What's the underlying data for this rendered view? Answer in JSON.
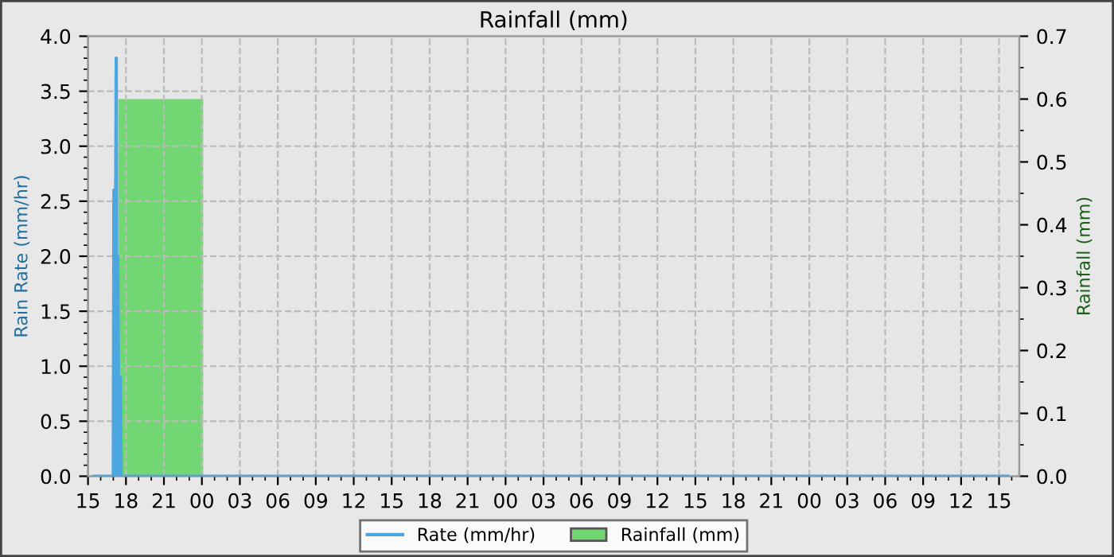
{
  "chart_data": {
    "type": "line",
    "title": "Rainfall (mm)",
    "ylabel": "Rain Rate (mm/hr)",
    "y2label": "Rainfall (mm)",
    "series": [
      {
        "name": "Rate (mm/hr)",
        "color": "#4ca6e0",
        "x": [
          15.5,
          17.0,
          17.05,
          17.12,
          17.23,
          17.3,
          17.35,
          17.45,
          17.56,
          17.62,
          87.7
        ],
        "values": [
          0,
          0,
          2.6,
          0,
          3.8,
          0,
          2.0,
          0,
          0.9,
          0,
          0
        ]
      },
      {
        "name": "Rainfall (mm)",
        "type": "area",
        "axis": "y2",
        "color": "#72d672",
        "x": [
          17.4,
          24.1
        ],
        "values": [
          0.6,
          0.6
        ]
      }
    ],
    "xlim": [
      15,
      88.6
    ],
    "xticks": [
      {
        "value": 15,
        "label": "15"
      },
      {
        "value": 18,
        "label": "18"
      },
      {
        "value": 21,
        "label": "21"
      },
      {
        "value": 24,
        "label": "00"
      },
      {
        "value": 27,
        "label": "03"
      },
      {
        "value": 30,
        "label": "06"
      },
      {
        "value": 33,
        "label": "09"
      },
      {
        "value": 36,
        "label": "12"
      },
      {
        "value": 39,
        "label": "15"
      },
      {
        "value": 42,
        "label": "18"
      },
      {
        "value": 45,
        "label": "21"
      },
      {
        "value": 48,
        "label": "00"
      },
      {
        "value": 51,
        "label": "03"
      },
      {
        "value": 54,
        "label": "06"
      },
      {
        "value": 57,
        "label": "09"
      },
      {
        "value": 60,
        "label": "12"
      },
      {
        "value": 63,
        "label": "15"
      },
      {
        "value": 66,
        "label": "18"
      },
      {
        "value": 69,
        "label": "21"
      },
      {
        "value": 72,
        "label": "00"
      },
      {
        "value": 75,
        "label": "03"
      },
      {
        "value": 78,
        "label": "06"
      },
      {
        "value": 81,
        "label": "09"
      },
      {
        "value": 84,
        "label": "12"
      },
      {
        "value": 87,
        "label": "15"
      }
    ],
    "ylim": [
      0,
      4
    ],
    "yticks": [
      {
        "value": 0,
        "label": "0.0"
      },
      {
        "value": 0.5,
        "label": "0.5"
      },
      {
        "value": 1,
        "label": "1.0"
      },
      {
        "value": 1.5,
        "label": "1.5"
      },
      {
        "value": 2,
        "label": "2.0"
      },
      {
        "value": 2.5,
        "label": "2.5"
      },
      {
        "value": 3,
        "label": "3.0"
      },
      {
        "value": 3.5,
        "label": "3.5"
      },
      {
        "value": 4,
        "label": "4.0"
      }
    ],
    "y2lim": [
      0,
      0.7
    ],
    "y2ticks": [
      {
        "value": 0,
        "label": "0.0"
      },
      0.1,
      0.2,
      0.3,
      0.4,
      0.5,
      0.6,
      0.7
    ],
    "grid": true,
    "legend": "bottom",
    "line_style": "solid",
    "marker": "none"
  }
}
